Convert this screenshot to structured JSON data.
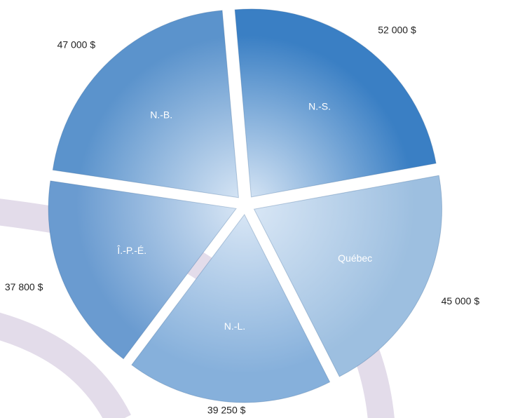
{
  "chart_data": {
    "type": "pie",
    "categories": [
      "N.-S.",
      "Québec",
      "N.-L.",
      "Î.-P.-É.",
      "N.-B."
    ],
    "values": [
      52000,
      45000,
      39250,
      37800,
      47000
    ],
    "value_labels": [
      "52 000 $",
      "45 000 $",
      "39 250 $",
      "37 800 $",
      "47 000 $"
    ],
    "colors": [
      "#3a7fc4",
      "#9dbfe0",
      "#86b0db",
      "#6a9bd0",
      "#5b93cc"
    ]
  }
}
